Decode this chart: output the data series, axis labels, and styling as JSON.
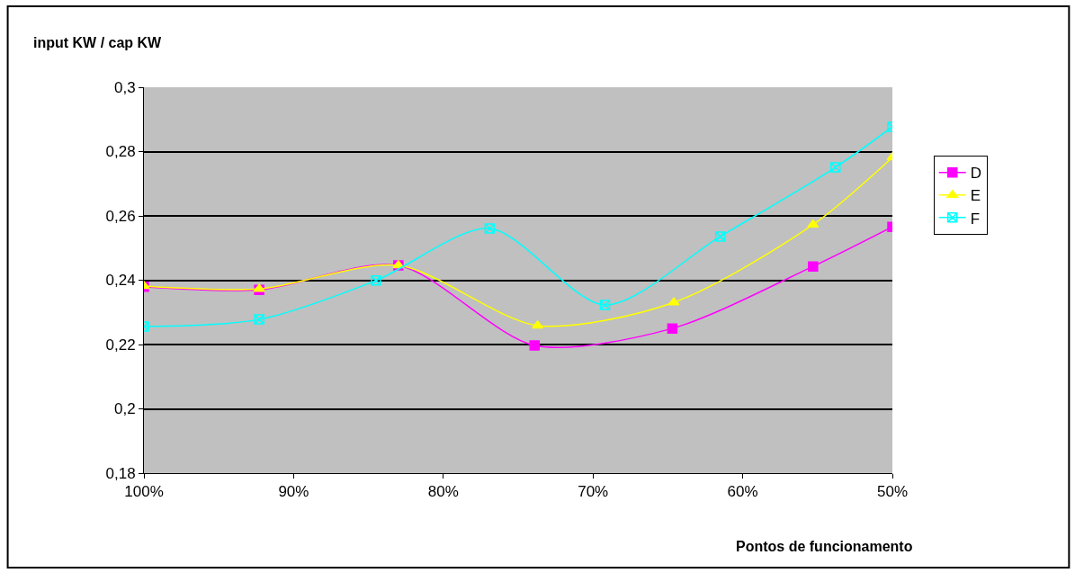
{
  "chart_data": {
    "type": "line",
    "xlabel": "Pontos de funcionamento",
    "ylabel": "input KW / cap KW",
    "xlim": [
      100,
      50
    ],
    "xticks": [
      {
        "value": 100,
        "label": "100%"
      },
      {
        "value": 90,
        "label": "90%"
      },
      {
        "value": 80,
        "label": "80%"
      },
      {
        "value": 70,
        "label": "70%"
      },
      {
        "value": 60,
        "label": "60%"
      },
      {
        "value": 50,
        "label": "50%"
      }
    ],
    "ylim": [
      0.18,
      0.3
    ],
    "yticks": [
      {
        "value": 0.18,
        "label": "0,18"
      },
      {
        "value": 0.2,
        "label": "0,2"
      },
      {
        "value": 0.22,
        "label": "0,22"
      },
      {
        "value": 0.24,
        "label": "0,24"
      },
      {
        "value": 0.26,
        "label": "0,26"
      },
      {
        "value": 0.28,
        "label": "0,28"
      },
      {
        "value": 0.3,
        "label": "0,3"
      }
    ],
    "grid": "y",
    "legend": "right",
    "series": [
      {
        "name": "D",
        "color": "#ff00ff",
        "marker": "square",
        "x": [
          100,
          92.3,
          83.0,
          73.9,
          64.7,
          55.3,
          50
        ],
        "values": [
          0.238,
          0.237,
          0.2446,
          0.2197,
          0.225,
          0.2443,
          0.2566
        ]
      },
      {
        "name": "E",
        "color": "#ffff00",
        "marker": "triangle",
        "x": [
          100,
          92.3,
          83.0,
          73.7,
          64.6,
          55.3,
          50
        ],
        "values": [
          0.2382,
          0.2373,
          0.2446,
          0.2259,
          0.2331,
          0.2573,
          0.2782
        ]
      },
      {
        "name": "F",
        "color": "#00ffff",
        "marker": "cross",
        "x": [
          100,
          92.3,
          84.5,
          76.9,
          69.2,
          61.5,
          53.8,
          50
        ],
        "values": [
          0.2256,
          0.2278,
          0.2399,
          0.2561,
          0.2323,
          0.2536,
          0.2751,
          0.2877
        ]
      }
    ]
  }
}
